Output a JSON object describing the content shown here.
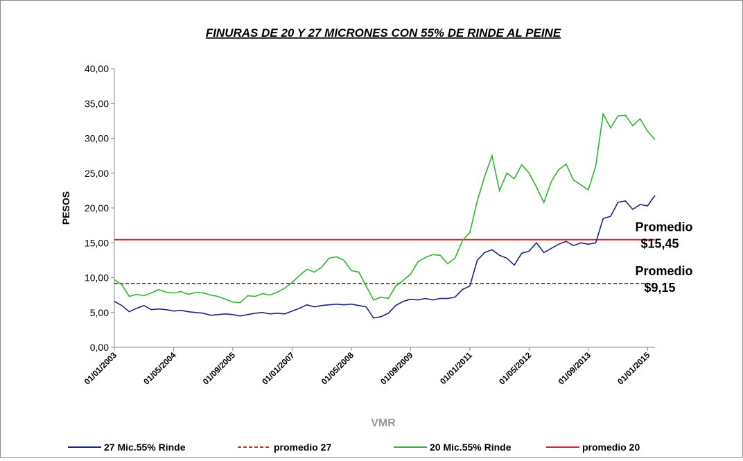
{
  "chart_data": {
    "type": "line",
    "title": "FINURAS DE 20 Y 27 MICRONES CON 55% DE RINDE AL PEINE",
    "y_label": "PESOS",
    "x_label": "VMR",
    "x": [
      "01/01/2003",
      "01/03/2003",
      "01/05/2003",
      "01/07/2003",
      "01/09/2003",
      "01/11/2003",
      "01/01/2004",
      "01/03/2004",
      "01/05/2004",
      "01/07/2004",
      "01/09/2004",
      "01/11/2004",
      "01/01/2005",
      "01/03/2005",
      "01/05/2005",
      "01/07/2005",
      "01/09/2005",
      "01/11/2005",
      "01/01/2006",
      "01/03/2006",
      "01/05/2006",
      "01/07/2006",
      "01/09/2006",
      "01/11/2006",
      "01/01/2007",
      "01/03/2007",
      "01/05/2007",
      "01/07/2007",
      "01/09/2007",
      "01/11/2007",
      "01/01/2008",
      "01/03/2008",
      "01/05/2008",
      "01/07/2008",
      "01/09/2008",
      "01/11/2008",
      "01/01/2009",
      "01/03/2009",
      "01/05/2009",
      "01/07/2009",
      "01/09/2009",
      "01/11/2009",
      "01/01/2010",
      "01/03/2010",
      "01/05/2010",
      "01/07/2010",
      "01/09/2010",
      "01/11/2010",
      "01/01/2011",
      "01/03/2011",
      "01/05/2011",
      "01/07/2011",
      "01/09/2011",
      "01/11/2011",
      "01/01/2012",
      "01/03/2012",
      "01/05/2012",
      "01/07/2012",
      "01/09/2012",
      "01/11/2012",
      "01/01/2013",
      "01/03/2013",
      "01/05/2013",
      "01/07/2013",
      "01/09/2013",
      "01/11/2013",
      "01/01/2014",
      "01/03/2014",
      "01/05/2014",
      "01/07/2014",
      "01/09/2014",
      "01/11/2014",
      "01/01/2015",
      "01/03/2015"
    ],
    "series": [
      {
        "name": "27 Mic.55% Rinde",
        "color": "#1a237e",
        "values": [
          6.6,
          6.0,
          5.1,
          5.6,
          6.0,
          5.4,
          5.5,
          5.4,
          5.2,
          5.3,
          5.1,
          5.0,
          4.9,
          4.6,
          4.7,
          4.8,
          4.7,
          4.5,
          4.7,
          4.9,
          5.0,
          4.8,
          4.9,
          4.8,
          5.2,
          5.6,
          6.1,
          5.8,
          6.0,
          6.1,
          6.2,
          6.1,
          6.2,
          6.0,
          5.8,
          4.2,
          4.4,
          4.9,
          6.0,
          6.6,
          6.9,
          6.8,
          7.0,
          6.8,
          7.0,
          7.0,
          7.2,
          8.3,
          8.8,
          12.5,
          13.6,
          14.0,
          13.2,
          12.8,
          11.8,
          13.5,
          13.8,
          15.0,
          13.6,
          14.2,
          14.8,
          15.2,
          14.6,
          15.0,
          14.8,
          15.0,
          18.5,
          18.8,
          20.8,
          21.0,
          19.8,
          20.5,
          20.3,
          21.8
        ]
      },
      {
        "name": "20 Mic.55% Rinde",
        "color": "#2db52d",
        "values": [
          9.7,
          9.0,
          7.3,
          7.6,
          7.4,
          7.8,
          8.3,
          7.9,
          7.8,
          8.0,
          7.6,
          7.9,
          7.8,
          7.5,
          7.3,
          6.9,
          6.5,
          6.4,
          7.4,
          7.3,
          7.7,
          7.5,
          7.9,
          8.5,
          9.3,
          10.3,
          11.2,
          10.8,
          11.5,
          12.8,
          13.0,
          12.5,
          11.0,
          10.8,
          8.8,
          6.8,
          7.2,
          7.0,
          8.8,
          9.6,
          10.5,
          12.3,
          12.9,
          13.3,
          13.2,
          12.0,
          12.8,
          15.3,
          16.5,
          21.0,
          24.5,
          27.5,
          22.5,
          25.0,
          24.2,
          26.2,
          25.0,
          23.0,
          20.8,
          23.8,
          25.5,
          26.3,
          24.0,
          23.3,
          22.6,
          26.0,
          33.5,
          31.5,
          33.2,
          33.3,
          31.8,
          32.8,
          31.0,
          29.8
        ]
      }
    ],
    "reference_lines": [
      {
        "name": "promedio 27",
        "color": "#e02020",
        "value": 9.15,
        "dashed": true,
        "annotation": [
          "Promedio",
          "$9,15"
        ]
      },
      {
        "name": "promedio 20",
        "color": "#e02020",
        "value": 15.45,
        "dashed": false,
        "annotation": [
          "Promedio",
          "$15,45"
        ]
      }
    ],
    "legend_order": [
      [
        "series",
        0
      ],
      [
        "reference_lines",
        0
      ],
      [
        "series",
        1
      ],
      [
        "reference_lines",
        1
      ]
    ],
    "xlim": [
      "01/01/2003",
      "01/03/2015"
    ],
    "xticks": [
      "01/01/2003",
      "01/05/2004",
      "01/09/2005",
      "01/01/2007",
      "01/05/2008",
      "01/09/2009",
      "01/01/2011",
      "01/05/2012",
      "01/09/2013",
      "01/01/2015"
    ],
    "ylim": [
      0,
      40
    ],
    "yticks": [
      {
        "value": 0,
        "label": "0,00"
      },
      {
        "value": 5,
        "label": "5,00"
      },
      {
        "value": 10,
        "label": "10,00"
      },
      {
        "value": 15,
        "label": "15,00"
      },
      {
        "value": 20,
        "label": "20,00"
      },
      {
        "value": 25,
        "label": "25,00"
      },
      {
        "value": 30,
        "label": "30,00"
      },
      {
        "value": 35,
        "label": "35,00"
      },
      {
        "value": 40,
        "label": "40,00"
      }
    ],
    "grid": false
  }
}
